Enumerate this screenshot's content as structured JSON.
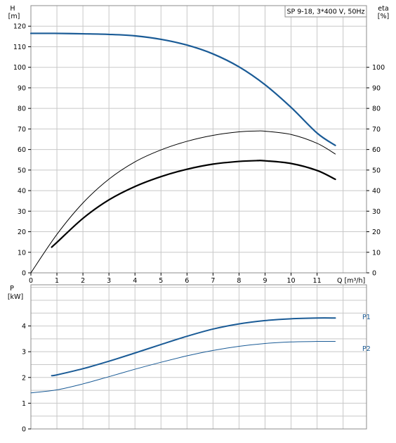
{
  "chart_data": [
    {
      "type": "line",
      "title": "SP 9-18, 3*400 V, 50Hz",
      "xlabel": "Q [m³/h]",
      "ylabel_line1": "H",
      "ylabel_line2": "[m]",
      "ylabel_right_line1": "eta",
      "ylabel_right_line2": "[%]",
      "xlim": [
        0,
        12.9
      ],
      "ylim": [
        0,
        130
      ],
      "x_ticks": [
        "0",
        "1",
        "2",
        "3",
        "4",
        "5",
        "6",
        "7",
        "8",
        "9",
        "10",
        "11"
      ],
      "y_ticks_left": [
        "0",
        "10",
        "20",
        "30",
        "40",
        "50",
        "60",
        "70",
        "80",
        "90",
        "100",
        "110",
        "120"
      ],
      "y_ticks_right": [
        "0",
        "10",
        "20",
        "30",
        "40",
        "50",
        "60",
        "70",
        "80",
        "90",
        "100"
      ],
      "grid": true,
      "series": [
        {
          "color": "#1a5b96",
          "width": 2.2,
          "x": [
            0,
            0.9,
            2,
            3,
            4,
            5,
            6,
            7,
            8,
            9,
            10,
            11,
            11.7
          ],
          "y": [
            116.5,
            116.5,
            116.3,
            116.0,
            115.3,
            113.6,
            110.8,
            106.5,
            100.2,
            91.5,
            80.5,
            68.0,
            62.0
          ]
        },
        {
          "color": "#000000",
          "width": 1.0,
          "x": [
            0,
            1,
            2,
            3,
            4,
            5,
            6,
            7,
            8,
            8.7,
            9,
            10,
            11,
            11.7
          ],
          "y": [
            0,
            18.7,
            34.0,
            45.6,
            54.0,
            59.8,
            64.0,
            66.9,
            68.6,
            69.0,
            68.9,
            67.3,
            63.0,
            57.8
          ]
        },
        {
          "color": "#000000",
          "width": 2.2,
          "x": [
            0.8,
            1,
            2,
            3,
            4,
            5,
            6,
            7,
            8,
            8.7,
            9,
            10,
            11,
            11.7
          ],
          "y": [
            12.5,
            14.8,
            26.5,
            35.5,
            42.0,
            46.8,
            50.4,
            52.9,
            54.2,
            54.6,
            54.5,
            53.2,
            49.8,
            45.5
          ]
        }
      ]
    },
    {
      "type": "line",
      "ylabel_line1": "P",
      "ylabel_line2": "[kW]",
      "xlim": [
        0,
        12.9
      ],
      "ylim": [
        0,
        5.6
      ],
      "y_ticks_left": [
        "0",
        "1",
        "2",
        "3",
        "4"
      ],
      "grid": true,
      "series": [
        {
          "name": "P1",
          "color": "#1a5b96",
          "width": 2.0,
          "x": [
            0.8,
            1,
            2,
            3,
            4,
            5,
            6,
            7,
            8,
            9,
            10,
            11,
            11.7
          ],
          "y": [
            2.07,
            2.1,
            2.34,
            2.63,
            2.95,
            3.28,
            3.6,
            3.88,
            4.08,
            4.21,
            4.28,
            4.31,
            4.31
          ]
        },
        {
          "name": "P2",
          "color": "#1a5b96",
          "width": 1.0,
          "x": [
            0,
            1,
            2,
            3,
            4,
            5,
            6,
            7,
            8,
            9,
            10,
            11,
            11.7
          ],
          "y": [
            1.4,
            1.52,
            1.75,
            2.03,
            2.32,
            2.59,
            2.84,
            3.05,
            3.21,
            3.32,
            3.38,
            3.4,
            3.4
          ]
        }
      ]
    }
  ]
}
